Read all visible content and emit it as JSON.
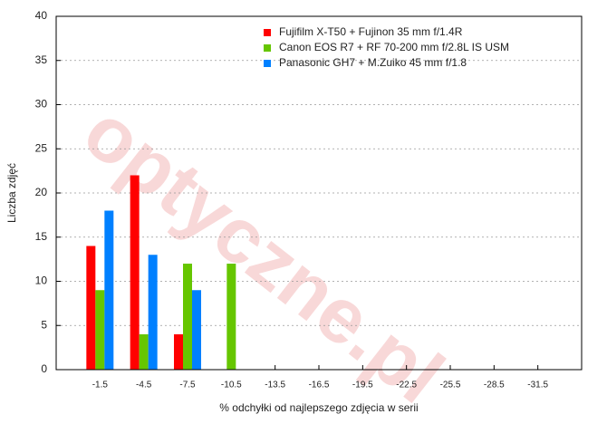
{
  "chart_data": {
    "type": "bar",
    "x_label": "% odchyłki od najlepszego zdjęcia w serii",
    "y_label": "Liczba zdjęć",
    "watermark": "optyczne.pl",
    "categories": [
      "-1.5",
      "-4.5",
      "-7.5",
      "-10.5",
      "-13.5",
      "-16.5",
      "-19.5",
      "-22.5",
      "-25.5",
      "-28.5",
      "-31.5"
    ],
    "series": [
      {
        "name": "Fujifilm X-T50 + Fujinon 35 mm f/1.4R",
        "color": "#ff0000",
        "values": [
          14,
          22,
          4,
          0,
          0,
          0,
          0,
          0,
          0,
          0,
          0
        ]
      },
      {
        "name": "Canon EOS R7 + RF 70-200 mm f/2.8L IS USM",
        "color": "#66c600",
        "values": [
          9,
          4,
          12,
          12,
          0,
          0,
          0,
          0,
          0,
          0,
          0
        ]
      },
      {
        "name": "Panasonic GH7 + M.Zuiko 45 mm f/1.8",
        "color": "#0080ff",
        "values": [
          18,
          13,
          9,
          0,
          0,
          0,
          0,
          0,
          0,
          0,
          0
        ]
      }
    ],
    "ylim": [
      0,
      40
    ],
    "yticks": [
      0,
      5,
      10,
      15,
      20,
      25,
      30,
      35,
      40
    ],
    "grid": true,
    "legend": "top-right"
  }
}
